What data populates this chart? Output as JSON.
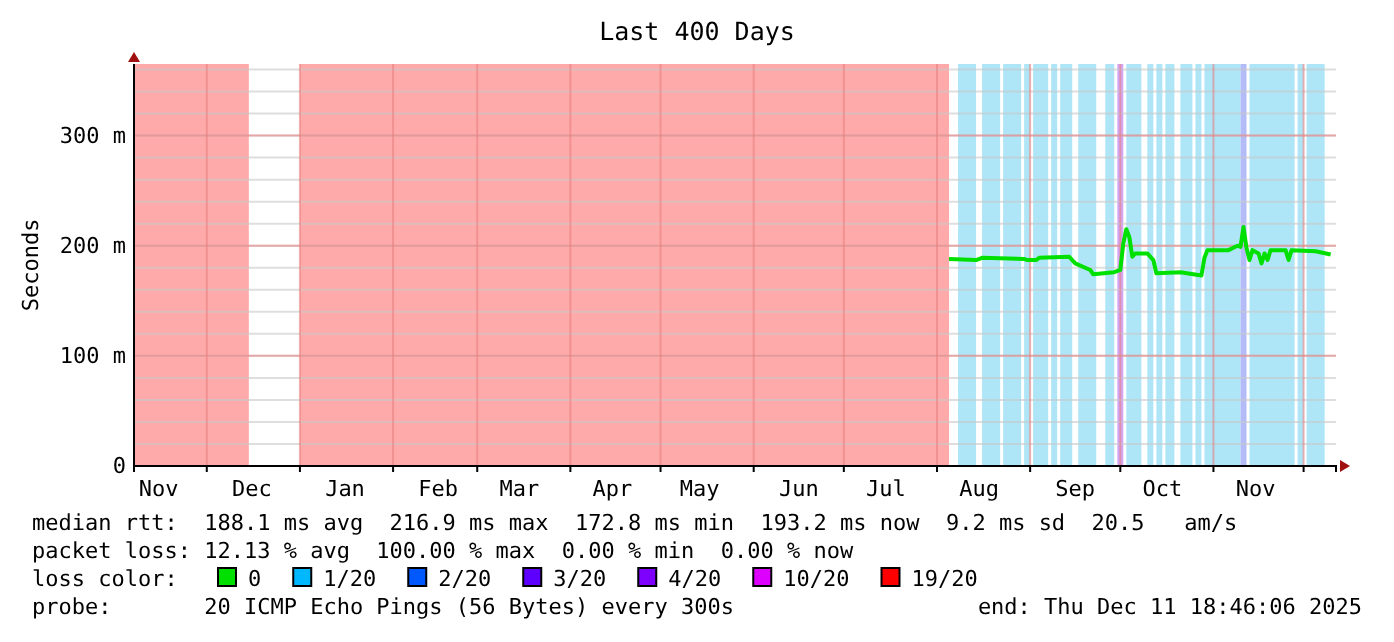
{
  "chart_data": {
    "type": "line",
    "title": "Last 400 Days",
    "ylabel": "Seconds",
    "xlim": [
      "2024-11-06T18:46",
      "2025-12-11T18:46"
    ],
    "xticks": [
      {
        "value": "2024-11-15",
        "label": "Nov"
      },
      {
        "value": "2024-12-01",
        "label": null
      },
      {
        "value": "2024-12-16",
        "label": "Dec"
      },
      {
        "value": "2025-01-01",
        "label": null
      },
      {
        "value": "2025-01-16",
        "label": "Jan"
      },
      {
        "value": "2025-02-01",
        "label": null
      },
      {
        "value": "2025-02-16",
        "label": "Feb"
      },
      {
        "value": "2025-03-01",
        "label": null
      },
      {
        "value": "2025-03-15",
        "label": "Mar"
      },
      {
        "value": "2025-04-01",
        "label": null
      },
      {
        "value": "2025-04-15",
        "label": "Apr"
      },
      {
        "value": "2025-05-01",
        "label": null
      },
      {
        "value": "2025-05-14",
        "label": "May"
      },
      {
        "value": "2025-06-01",
        "label": null
      },
      {
        "value": "2025-06-16",
        "label": "Jun"
      },
      {
        "value": "2025-07-01",
        "label": null
      },
      {
        "value": "2025-07-15",
        "label": "Jul"
      },
      {
        "value": "2025-08-01",
        "label": null
      },
      {
        "value": "2025-08-15",
        "label": "Aug"
      },
      {
        "value": "2025-09-01",
        "label": null
      },
      {
        "value": "2025-09-16",
        "label": "Sep"
      },
      {
        "value": "2025-10-01",
        "label": null
      },
      {
        "value": "2025-10-15",
        "label": "Oct"
      },
      {
        "value": "2025-11-01",
        "label": null
      },
      {
        "value": "2025-11-15",
        "label": "Nov"
      },
      {
        "value": "2025-12-01",
        "label": null
      }
    ],
    "ylim": [
      0,
      365
    ],
    "yticks": [
      0,
      {
        "value": 100,
        "label": "100 m"
      },
      {
        "value": 200,
        "label": "200 m"
      },
      {
        "value": 300,
        "label": "300 m"
      }
    ],
    "grid": true,
    "legend": "bottom",
    "x": [
      "2025-08-05",
      "2025-08-14",
      "2025-08-16",
      "2025-08-30",
      "2025-08-31",
      "2025-09-03",
      "2025-09-04",
      "2025-09-14",
      "2025-09-16",
      "2025-09-21",
      "2025-09-22",
      "2025-09-29",
      "2025-10-01",
      "2025-10-02",
      "2025-10-03",
      "2025-10-04",
      "2025-10-05",
      "2025-10-06",
      "2025-10-10",
      "2025-10-12",
      "2025-10-13",
      "2025-10-21",
      "2025-10-28",
      "2025-10-29",
      "2025-10-30",
      "2025-11-06",
      "2025-11-09",
      "2025-11-10",
      "2025-11-11",
      "2025-11-12",
      "2025-11-13",
      "2025-11-14",
      "2025-11-16",
      "2025-11-17",
      "2025-11-18",
      "2025-11-19",
      "2025-11-20",
      "2025-11-25",
      "2025-11-26",
      "2025-11-27",
      "2025-12-05",
      "2025-12-10"
    ],
    "series": [
      {
        "name": "0",
        "color": "#00e000",
        "values": [
          188,
          187,
          189,
          188,
          187,
          187,
          189,
          190,
          184,
          178,
          174,
          176,
          178,
          202,
          215,
          208,
          190,
          193,
          193,
          187,
          175,
          176,
          173,
          189,
          196,
          196,
          200,
          199,
          217,
          198,
          187,
          196,
          193,
          184,
          193,
          187,
          196,
          196,
          187,
          196,
          195,
          192
        ]
      },
      {
        "name": "1/20",
        "color": "#00b8ff",
        "values": [
          null,
          null,
          null,
          null,
          null,
          null,
          null,
          null,
          null,
          null,
          null,
          null,
          null,
          null,
          null,
          null,
          null,
          null,
          null,
          null,
          null,
          null,
          null,
          null,
          null,
          null,
          null,
          null,
          null,
          null,
          null,
          null,
          null,
          null,
          null,
          null,
          null,
          null,
          null,
          null,
          null,
          null
        ]
      },
      {
        "name": "2/20",
        "color": "#0059ff",
        "values": [
          null,
          null,
          null,
          null,
          null,
          null,
          null,
          null,
          null,
          null,
          null,
          null,
          null,
          null,
          null,
          null,
          null,
          null,
          null,
          null,
          null,
          null,
          null,
          null,
          null,
          null,
          null,
          null,
          null,
          null,
          null,
          null,
          null,
          null,
          null,
          null,
          null,
          null,
          null,
          null,
          null,
          null
        ]
      },
      {
        "name": "3/20",
        "color": "#5e00ff",
        "values": [
          null,
          null,
          null,
          null,
          null,
          null,
          null,
          null,
          null,
          null,
          null,
          null,
          null,
          null,
          null,
          null,
          null,
          null,
          null,
          null,
          null,
          null,
          null,
          null,
          null,
          null,
          null,
          null,
          null,
          null,
          null,
          null,
          null,
          null,
          null,
          null,
          null,
          null,
          null,
          null,
          null,
          null
        ]
      },
      {
        "name": "4/20",
        "color": "#7e00ff",
        "values": [
          null,
          null,
          null,
          null,
          null,
          null,
          null,
          null,
          null,
          null,
          null,
          null,
          null,
          null,
          null,
          null,
          null,
          null,
          null,
          null,
          null,
          null,
          null,
          null,
          null,
          null,
          null,
          null,
          null,
          null,
          null,
          null,
          null,
          null,
          null,
          null,
          null,
          null,
          null,
          null,
          null,
          null
        ]
      },
      {
        "name": "10/20",
        "color": "#dd00ff",
        "values": [
          null,
          null,
          null,
          null,
          null,
          null,
          null,
          null,
          null,
          null,
          null,
          null,
          null,
          null,
          null,
          null,
          null,
          null,
          null,
          null,
          null,
          null,
          null,
          null,
          null,
          null,
          null,
          null,
          null,
          null,
          null,
          null,
          null,
          null,
          null,
          null,
          null,
          null,
          null,
          null,
          null,
          null
        ]
      },
      {
        "name": "19/20",
        "color": "#ff0000",
        "values": [
          null,
          null,
          null,
          null,
          null,
          null,
          null,
          null,
          null,
          null,
          null,
          null,
          null,
          null,
          null,
          null,
          null,
          null,
          null,
          null,
          null,
          null,
          null,
          null,
          null,
          null,
          null,
          null,
          null,
          null,
          null,
          null,
          null,
          null,
          null,
          null,
          null,
          null,
          null,
          null,
          null,
          null
        ]
      }
    ],
    "bands": [
      {
        "axis": "x",
        "from": "2024-11-06T18:46",
        "to": "2024-12-15",
        "color": "#ffaaaa"
      },
      {
        "axis": "x",
        "from": "2025-01-01",
        "to": "2025-08-05",
        "color": "#ffaaaa"
      },
      {
        "axis": "x",
        "from": "2025-08-08",
        "to": "2025-08-14",
        "color": "#aee6f8"
      },
      {
        "axis": "x",
        "from": "2025-08-16",
        "to": "2025-08-22",
        "color": "#aee6f8"
      },
      {
        "axis": "x",
        "from": "2025-08-23",
        "to": "2025-08-29",
        "color": "#aee6f8"
      },
      {
        "axis": "x",
        "from": "2025-08-30",
        "to": "2025-09-01",
        "color": "#aee6f8"
      },
      {
        "axis": "x",
        "from": "2025-09-02",
        "to": "2025-09-07",
        "color": "#aee6f8"
      },
      {
        "axis": "x",
        "from": "2025-09-08",
        "to": "2025-09-10",
        "color": "#aee6f8"
      },
      {
        "axis": "x",
        "from": "2025-09-11",
        "to": "2025-09-15",
        "color": "#aee6f8"
      },
      {
        "axis": "x",
        "from": "2025-09-17",
        "to": "2025-09-23",
        "color": "#aee6f8"
      },
      {
        "axis": "x",
        "from": "2025-09-26",
        "to": "2025-09-29",
        "color": "#aee6f8"
      },
      {
        "axis": "x",
        "from": "2025-09-30",
        "to": "2025-10-02",
        "color": "#d2a8f6"
      },
      {
        "axis": "x",
        "from": "2025-10-03",
        "to": "2025-10-08",
        "color": "#aee6f8"
      },
      {
        "axis": "x",
        "from": "2025-10-10",
        "to": "2025-10-12",
        "color": "#aee6f8"
      },
      {
        "axis": "x",
        "from": "2025-10-13",
        "to": "2025-10-15",
        "color": "#aee6f8"
      },
      {
        "axis": "x",
        "from": "2025-10-16",
        "to": "2025-10-19",
        "color": "#aee6f8"
      },
      {
        "axis": "x",
        "from": "2025-10-21",
        "to": "2025-10-25",
        "color": "#aee6f8"
      },
      {
        "axis": "x",
        "from": "2025-10-26",
        "to": "2025-10-28",
        "color": "#aee6f8"
      },
      {
        "axis": "x",
        "from": "2025-10-29",
        "to": "2025-11-10",
        "color": "#aee6f8"
      },
      {
        "axis": "x",
        "from": "2025-11-10",
        "to": "2025-11-12",
        "color": "#b4bcf8"
      },
      {
        "axis": "x",
        "from": "2025-11-13",
        "to": "2025-11-28",
        "color": "#aee6f8"
      },
      {
        "axis": "x",
        "from": "2025-11-29",
        "to": "2025-12-01",
        "color": "#aee6f8"
      },
      {
        "axis": "x",
        "from": "2025-12-02",
        "to": "2025-12-08",
        "color": "#aee6f8"
      }
    ],
    "annotations": [
      "median rtt:  188.1 ms avg  216.9 ms max  172.8 ms min  193.2 ms now  9.2 ms sd  20.5   am/s",
      "packet loss: 12.13 % avg  100.00 % max  0.00 % min  0.00 % now",
      "loss color:",
      "probe:       20 ICMP Echo Pings (56 Bytes) every 300s",
      "end: Thu Dec 11 18:46:06 2025"
    ]
  }
}
